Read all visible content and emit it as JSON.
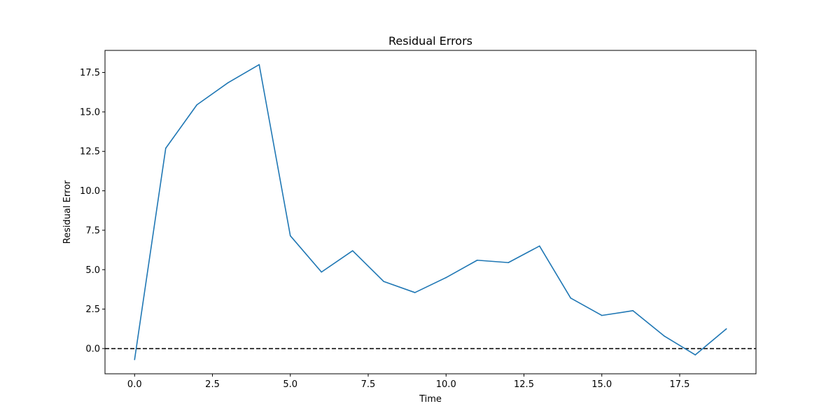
{
  "chart_data": {
    "type": "line",
    "title": "Residual Errors",
    "xlabel": "Time",
    "ylabel": "Residual Error",
    "xlim": [
      -0.95,
      19.95
    ],
    "ylim": [
      -1.6,
      18.9
    ],
    "xticks": [
      0.0,
      2.5,
      5.0,
      7.5,
      10.0,
      12.5,
      15.0,
      17.5
    ],
    "xtick_labels": [
      "0.0",
      "2.5",
      "5.0",
      "7.5",
      "10.0",
      "12.5",
      "15.0",
      "17.5"
    ],
    "yticks": [
      0.0,
      2.5,
      5.0,
      7.5,
      10.0,
      12.5,
      15.0,
      17.5
    ],
    "ytick_labels": [
      "0.0",
      "2.5",
      "5.0",
      "7.5",
      "10.0",
      "12.5",
      "15.0",
      "17.5"
    ],
    "grid": false,
    "reference_line": {
      "y": 0,
      "style": "dashed",
      "color": "#000000"
    },
    "series": [
      {
        "color": "#1f77b4",
        "x": [
          0,
          1,
          2,
          3,
          4,
          5,
          6,
          7,
          8,
          9,
          10,
          11,
          12,
          13,
          14,
          15,
          16,
          17,
          18,
          19
        ],
        "y": [
          -0.7,
          12.7,
          15.45,
          16.85,
          18.0,
          7.15,
          4.85,
          6.2,
          4.25,
          3.55,
          4.5,
          5.6,
          5.45,
          6.5,
          3.2,
          2.1,
          2.4,
          0.8,
          -0.4,
          1.25
        ]
      }
    ]
  }
}
